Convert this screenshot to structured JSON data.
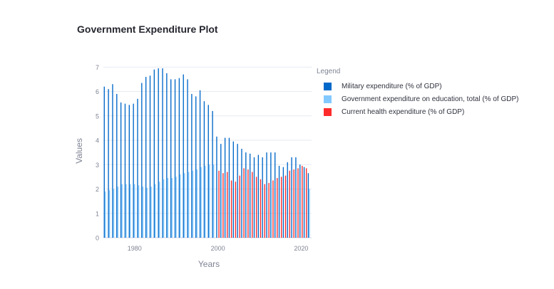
{
  "title": "Government Expenditure Plot",
  "chart_data": {
    "type": "bar",
    "title": "Government Expenditure Plot",
    "xlabel": "Years",
    "ylabel": "Values",
    "ylim": [
      0,
      7.3
    ],
    "xlim": [
      1972.5,
      2022.5
    ],
    "yticks": [
      0,
      1,
      2,
      3,
      4,
      5,
      6,
      7
    ],
    "xticks": [
      1980,
      2000,
      2020
    ],
    "grid": true,
    "legend_title": "Legend",
    "legend_position": "right",
    "x": [
      1973,
      1974,
      1975,
      1976,
      1977,
      1978,
      1979,
      1980,
      1981,
      1982,
      1983,
      1984,
      1985,
      1986,
      1987,
      1988,
      1989,
      1990,
      1991,
      1992,
      1993,
      1994,
      1995,
      1996,
      1997,
      1998,
      1999,
      2000,
      2001,
      2002,
      2003,
      2004,
      2005,
      2006,
      2007,
      2008,
      2009,
      2010,
      2011,
      2012,
      2013,
      2014,
      2015,
      2016,
      2017,
      2018,
      2019,
      2020,
      2021,
      2022
    ],
    "series": [
      {
        "name": "Military expenditure (% of GDP)",
        "color": "#0068c9",
        "values": [
          6.2,
          6.1,
          6.3,
          5.9,
          5.55,
          5.5,
          5.45,
          5.5,
          5.7,
          6.35,
          6.6,
          6.65,
          6.9,
          6.95,
          6.95,
          6.75,
          6.5,
          6.5,
          6.55,
          6.7,
          6.5,
          5.9,
          5.8,
          6.05,
          5.6,
          5.45,
          5.2,
          4.15,
          3.85,
          4.1,
          4.1,
          3.95,
          3.85,
          3.65,
          3.5,
          3.45,
          3.3,
          3.4,
          3.3,
          3.5,
          3.5,
          3.5,
          2.95,
          2.9,
          3.1,
          3.3,
          3.3,
          3.0,
          2.9,
          2.65
        ]
      },
      {
        "name": "Government expenditure on education, total (% of GDP)",
        "color": "#83c9ff",
        "values": [
          1.9,
          1.95,
          2.0,
          2.1,
          2.2,
          2.2,
          2.2,
          2.2,
          2.15,
          2.1,
          2.05,
          2.1,
          2.2,
          2.3,
          2.4,
          2.45,
          2.45,
          2.5,
          2.6,
          2.65,
          2.7,
          2.75,
          2.8,
          2.9,
          2.95,
          3.0,
          3.0,
          null,
          null,
          null,
          null,
          null,
          null,
          null,
          null,
          null,
          null,
          null,
          null,
          null,
          null,
          null,
          null,
          null,
          null,
          null,
          null,
          null,
          null,
          2.0
        ]
      },
      {
        "name": "Current health expenditure (% of GDP)",
        "color": "#ff2b2b",
        "values": [
          null,
          null,
          null,
          null,
          null,
          null,
          null,
          null,
          null,
          null,
          null,
          null,
          null,
          null,
          null,
          null,
          null,
          null,
          null,
          null,
          null,
          null,
          null,
          null,
          null,
          null,
          null,
          2.75,
          2.65,
          2.7,
          2.35,
          2.3,
          2.55,
          2.85,
          2.8,
          2.7,
          2.5,
          2.4,
          2.2,
          2.25,
          2.35,
          2.45,
          2.5,
          2.55,
          2.75,
          2.8,
          2.85,
          2.95,
          2.85,
          null
        ]
      }
    ]
  }
}
